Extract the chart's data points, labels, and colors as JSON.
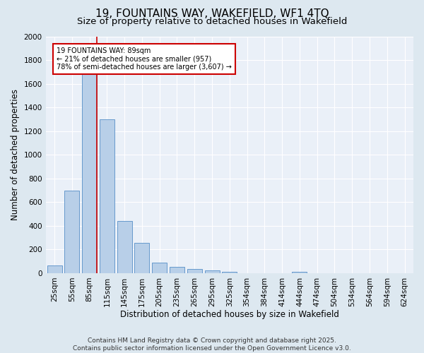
{
  "title": "19, FOUNTAINS WAY, WAKEFIELD, WF1 4TQ",
  "subtitle": "Size of property relative to detached houses in Wakefield",
  "xlabel": "Distribution of detached houses by size in Wakefield",
  "ylabel": "Number of detached properties",
  "categories": [
    "25sqm",
    "55sqm",
    "85sqm",
    "115sqm",
    "145sqm",
    "175sqm",
    "205sqm",
    "235sqm",
    "265sqm",
    "295sqm",
    "325sqm",
    "354sqm",
    "384sqm",
    "414sqm",
    "444sqm",
    "474sqm",
    "504sqm",
    "534sqm",
    "564sqm",
    "594sqm",
    "624sqm"
  ],
  "values": [
    65,
    700,
    1680,
    1300,
    440,
    255,
    90,
    55,
    35,
    22,
    12,
    0,
    0,
    0,
    12,
    0,
    0,
    0,
    0,
    0,
    0
  ],
  "bar_color": "#b8cfe8",
  "bar_edge_color": "#6699cc",
  "red_line_index": 2,
  "annotation_line1": "19 FOUNTAINS WAY: 89sqm",
  "annotation_line2": "← 21% of detached houses are smaller (957)",
  "annotation_line3": "78% of semi-detached houses are larger (3,607) →",
  "annotation_box_color": "#ffffff",
  "annotation_box_edge_color": "#cc0000",
  "ylim": [
    0,
    2000
  ],
  "yticks": [
    0,
    200,
    400,
    600,
    800,
    1000,
    1200,
    1400,
    1600,
    1800,
    2000
  ],
  "bg_color": "#dde8f0",
  "plot_bg_color": "#eaf0f8",
  "footer": "Contains HM Land Registry data © Crown copyright and database right 2025.\nContains public sector information licensed under the Open Government Licence v3.0.",
  "title_fontsize": 11,
  "subtitle_fontsize": 9.5,
  "axis_label_fontsize": 8.5,
  "tick_fontsize": 7.5,
  "annotation_fontsize": 7,
  "footer_fontsize": 6.5
}
